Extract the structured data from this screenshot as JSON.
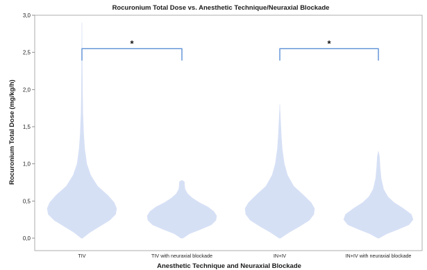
{
  "chart_data": {
    "type": "violin",
    "title": "Rocuronium Total Dose vs. Anesthetic Technique/Neuraxial Blockade",
    "xlabel": "Anesthetic Technique and Neuraxial Blockade",
    "ylabel": "Rocuronium Total Dose (mg/kg/h)",
    "ylim": [
      0,
      3
    ],
    "yticks": [
      "0,0",
      "0,5",
      "1,0",
      "1,5",
      "2,0",
      "2,5",
      "3,0"
    ],
    "categories": [
      "TIV",
      "TIV with neuraxial blockade",
      "IN+IV",
      "IN+IV with neuraxial blockade"
    ],
    "fill_color": "#d6e0f5",
    "bracket_color": "#5b8fd6",
    "violins": [
      {
        "category": "TIV",
        "profile": [
          [
            0.0,
            0.02
          ],
          [
            0.08,
            0.24
          ],
          [
            0.16,
            0.52
          ],
          [
            0.24,
            0.8
          ],
          [
            0.32,
            0.97
          ],
          [
            0.4,
            1.0
          ],
          [
            0.48,
            0.93
          ],
          [
            0.58,
            0.74
          ],
          [
            0.7,
            0.45
          ],
          [
            0.85,
            0.25
          ],
          [
            1.0,
            0.14
          ],
          [
            1.2,
            0.08
          ],
          [
            1.4,
            0.05
          ],
          [
            1.7,
            0.025
          ],
          [
            2.0,
            0.015
          ],
          [
            2.4,
            0.008
          ],
          [
            2.9,
            0.0
          ]
        ]
      },
      {
        "category": "TIV with neuraxial blockade",
        "profile": [
          [
            0.0,
            0.03
          ],
          [
            0.06,
            0.22
          ],
          [
            0.12,
            0.55
          ],
          [
            0.18,
            0.85
          ],
          [
            0.24,
            0.98
          ],
          [
            0.3,
            1.0
          ],
          [
            0.36,
            0.92
          ],
          [
            0.42,
            0.75
          ],
          [
            0.48,
            0.5
          ],
          [
            0.54,
            0.3
          ],
          [
            0.6,
            0.16
          ],
          [
            0.66,
            0.09
          ],
          [
            0.7,
            0.08
          ],
          [
            0.76,
            0.07
          ],
          [
            0.78,
            0.0
          ]
        ]
      },
      {
        "category": "IN+IV",
        "profile": [
          [
            0.0,
            0.02
          ],
          [
            0.08,
            0.28
          ],
          [
            0.16,
            0.58
          ],
          [
            0.24,
            0.85
          ],
          [
            0.32,
            0.98
          ],
          [
            0.4,
            1.0
          ],
          [
            0.48,
            0.9
          ],
          [
            0.58,
            0.68
          ],
          [
            0.7,
            0.4
          ],
          [
            0.85,
            0.22
          ],
          [
            1.0,
            0.13
          ],
          [
            1.2,
            0.07
          ],
          [
            1.4,
            0.04
          ],
          [
            1.6,
            0.02
          ],
          [
            1.8,
            0.0
          ]
        ]
      },
      {
        "category": "IN+IV with neuraxial blockade",
        "profile": [
          [
            0.0,
            0.02
          ],
          [
            0.06,
            0.25
          ],
          [
            0.12,
            0.58
          ],
          [
            0.18,
            0.88
          ],
          [
            0.25,
            1.0
          ],
          [
            0.32,
            0.95
          ],
          [
            0.4,
            0.72
          ],
          [
            0.48,
            0.45
          ],
          [
            0.56,
            0.27
          ],
          [
            0.66,
            0.15
          ],
          [
            0.8,
            0.08
          ],
          [
            0.95,
            0.05
          ],
          [
            1.1,
            0.03
          ],
          [
            1.17,
            0.0
          ]
        ]
      }
    ],
    "significance": [
      {
        "from": "TIV",
        "to": "TIV with neuraxial blockade",
        "y": 2.55,
        "label": "*"
      },
      {
        "from": "IN+IV",
        "to": "IN+IV with neuraxial blockade",
        "y": 2.55,
        "label": "*"
      }
    ]
  }
}
